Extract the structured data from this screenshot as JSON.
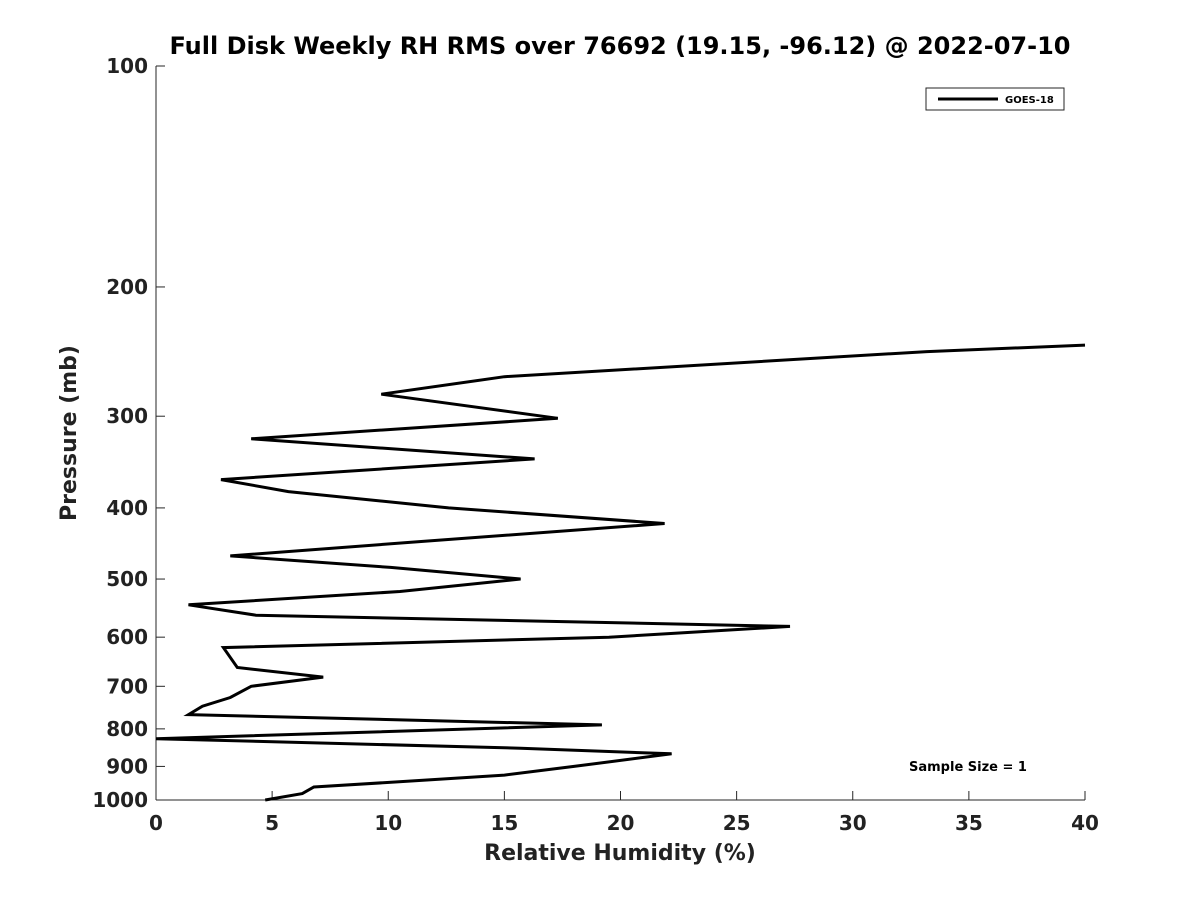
{
  "chart_data": {
    "type": "line",
    "title": "Full Disk Weekly RH RMS over 76692 (19.15, -96.12) @ 2022-07-10",
    "xlabel": "Relative Humidity (%)",
    "ylabel": "Pressure (mb)",
    "xlim": [
      0,
      40
    ],
    "ylim": [
      100,
      1000
    ],
    "yscale": "log",
    "y_reversed": true,
    "grid": false,
    "legend_position": "top-right",
    "xticks": [
      "0",
      "5",
      "10",
      "15",
      "20",
      "25",
      "30",
      "35",
      "40"
    ],
    "yticks": [
      "100",
      "200",
      "300",
      "400",
      "500",
      "600",
      "700",
      "800",
      "900",
      "1000"
    ],
    "series": [
      {
        "name": "GOES-18",
        "color": "#000000",
        "points": [
          [
            40.0,
            240
          ],
          [
            33.2,
            245
          ],
          [
            15.0,
            265
          ],
          [
            9.7,
            280
          ],
          [
            17.3,
            302
          ],
          [
            4.1,
            322
          ],
          [
            16.3,
            343
          ],
          [
            2.8,
            366
          ],
          [
            5.7,
            380
          ],
          [
            12.6,
            400
          ],
          [
            21.9,
            420
          ],
          [
            11.2,
            445
          ],
          [
            3.2,
            465
          ],
          [
            10.1,
            482
          ],
          [
            15.7,
            500
          ],
          [
            10.5,
            520
          ],
          [
            1.4,
            542
          ],
          [
            4.3,
            560
          ],
          [
            27.3,
            580
          ],
          [
            19.5,
            600
          ],
          [
            2.9,
            620
          ],
          [
            3.5,
            660
          ],
          [
            7.2,
            680
          ],
          [
            4.1,
            700
          ],
          [
            3.2,
            725
          ],
          [
            2.0,
            745
          ],
          [
            1.4,
            765
          ],
          [
            19.2,
            790
          ],
          [
            0.0,
            825
          ],
          [
            15.7,
            850
          ],
          [
            22.2,
            865
          ],
          [
            18.0,
            900
          ],
          [
            15.0,
            925
          ],
          [
            10.3,
            945
          ],
          [
            6.8,
            960
          ],
          [
            6.3,
            980
          ],
          [
            4.7,
            1000
          ]
        ]
      }
    ],
    "annotations": [
      "Sample Size = 1"
    ]
  }
}
